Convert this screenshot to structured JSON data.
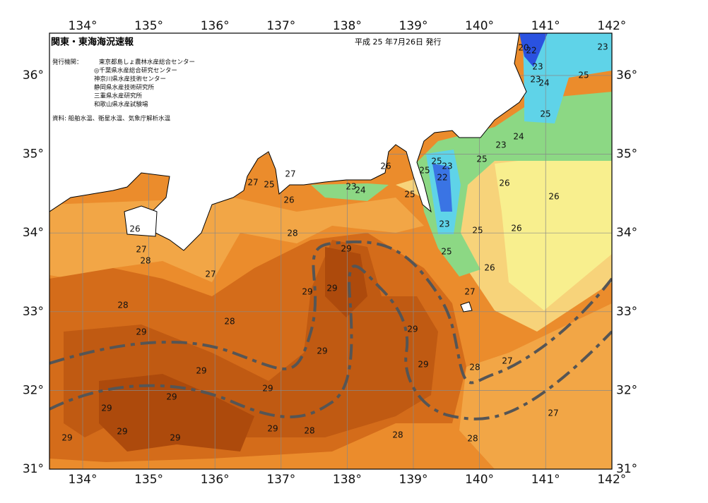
{
  "header": {
    "title": "関東・東海海況速報",
    "date": "平成 25 年7月26日 発行"
  },
  "publishers": {
    "label": "発行機関：",
    "agencies": [
      "東京都島しょ農林水産総合センター",
      "◎千葉県水産総合研究センター",
      "神奈川県水産技術センター",
      "静岡県水産技術研究所",
      "三重県水産研究所",
      "和歌山県水産試験場"
    ]
  },
  "source": "資料: 船舶水温、衛星水温、気象庁解析水温",
  "map": {
    "lon_ticks": [
      {
        "value": 134,
        "label": "134°"
      },
      {
        "value": 135,
        "label": "135°"
      },
      {
        "value": 136,
        "label": "136°"
      },
      {
        "value": 137,
        "label": "137°"
      },
      {
        "value": 138,
        "label": "138°"
      },
      {
        "value": 139,
        "label": "139°"
      },
      {
        "value": 140,
        "label": "140°"
      },
      {
        "value": 141,
        "label": "141°"
      },
      {
        "value": 142,
        "label": "142°"
      }
    ],
    "lat_ticks": [
      {
        "value": 36,
        "label": "36°"
      },
      {
        "value": 35,
        "label": "35°"
      },
      {
        "value": 34,
        "label": "34°"
      },
      {
        "value": 33,
        "label": "33°"
      },
      {
        "value": 32,
        "label": "32°"
      },
      {
        "value": 31,
        "label": "31°"
      }
    ],
    "contour_labels": [
      20,
      22,
      23,
      23,
      25,
      23,
      24,
      25,
      24,
      23,
      25,
      26,
      26,
      26,
      25,
      26,
      27,
      25,
      23,
      22,
      23,
      25,
      25,
      25,
      26,
      23,
      24,
      26,
      27,
      25,
      27,
      28,
      26,
      27,
      28,
      27,
      29,
      29,
      29,
      28,
      28,
      29,
      29,
      29,
      29,
      28,
      27,
      29,
      29,
      29,
      29,
      29,
      29,
      29,
      29,
      28,
      28,
      28,
      27
    ]
  }
}
